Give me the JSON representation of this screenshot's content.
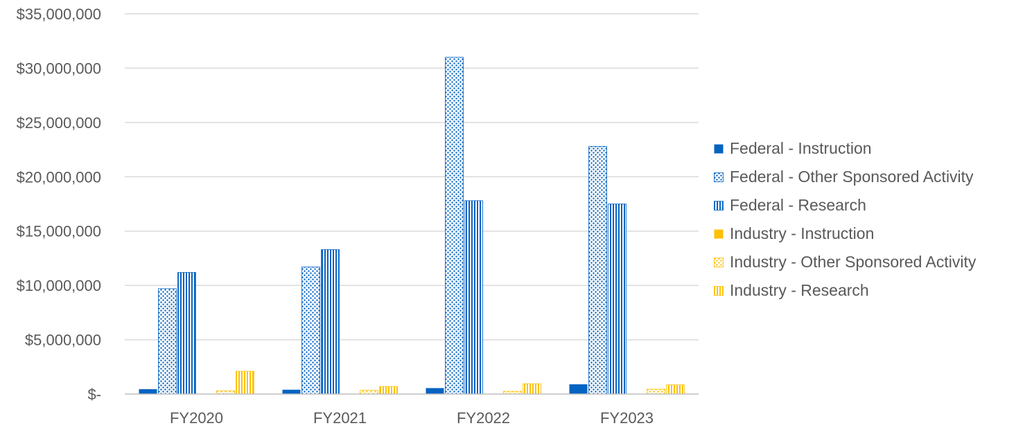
{
  "chart_data": {
    "type": "bar",
    "title": "",
    "xlabel": "",
    "ylabel": "",
    "categories": [
      "FY2020",
      "FY2021",
      "FY2022",
      "FY2023"
    ],
    "ylim": [
      0,
      35000000
    ],
    "yticks": [
      0,
      5000000,
      10000000,
      15000000,
      20000000,
      25000000,
      30000000,
      35000000
    ],
    "ytick_labels": [
      "$-",
      "$5,000,000",
      "$10,000,000",
      "$15,000,000",
      "$20,000,000",
      "$25,000,000",
      "$30,000,000",
      "$35,000,000"
    ],
    "grid": true,
    "legend_position": "right",
    "series": [
      {
        "name": "Federal - Instruction",
        "color": "#0563C1",
        "pattern": "solid",
        "values": [
          450000,
          400000,
          550000,
          900000
        ]
      },
      {
        "name": "Federal - Other Sponsored Activity",
        "color": "#0563C1",
        "pattern": "dots",
        "values": [
          9700000,
          11700000,
          31000000,
          22800000
        ]
      },
      {
        "name": "Federal - Research",
        "color": "#0563C1",
        "pattern": "vertical-stripes",
        "values": [
          11200000,
          13300000,
          17800000,
          17500000
        ]
      },
      {
        "name": "Industry - Instruction",
        "color": "#FFC000",
        "pattern": "solid",
        "values": [
          0,
          0,
          0,
          0
        ]
      },
      {
        "name": "Industry - Other Sponsored Activity",
        "color": "#FFC000",
        "pattern": "dots",
        "values": [
          300000,
          350000,
          250000,
          450000
        ]
      },
      {
        "name": "Industry - Research",
        "color": "#FFC000",
        "pattern": "vertical-stripes",
        "values": [
          2100000,
          700000,
          950000,
          850000
        ]
      }
    ]
  }
}
